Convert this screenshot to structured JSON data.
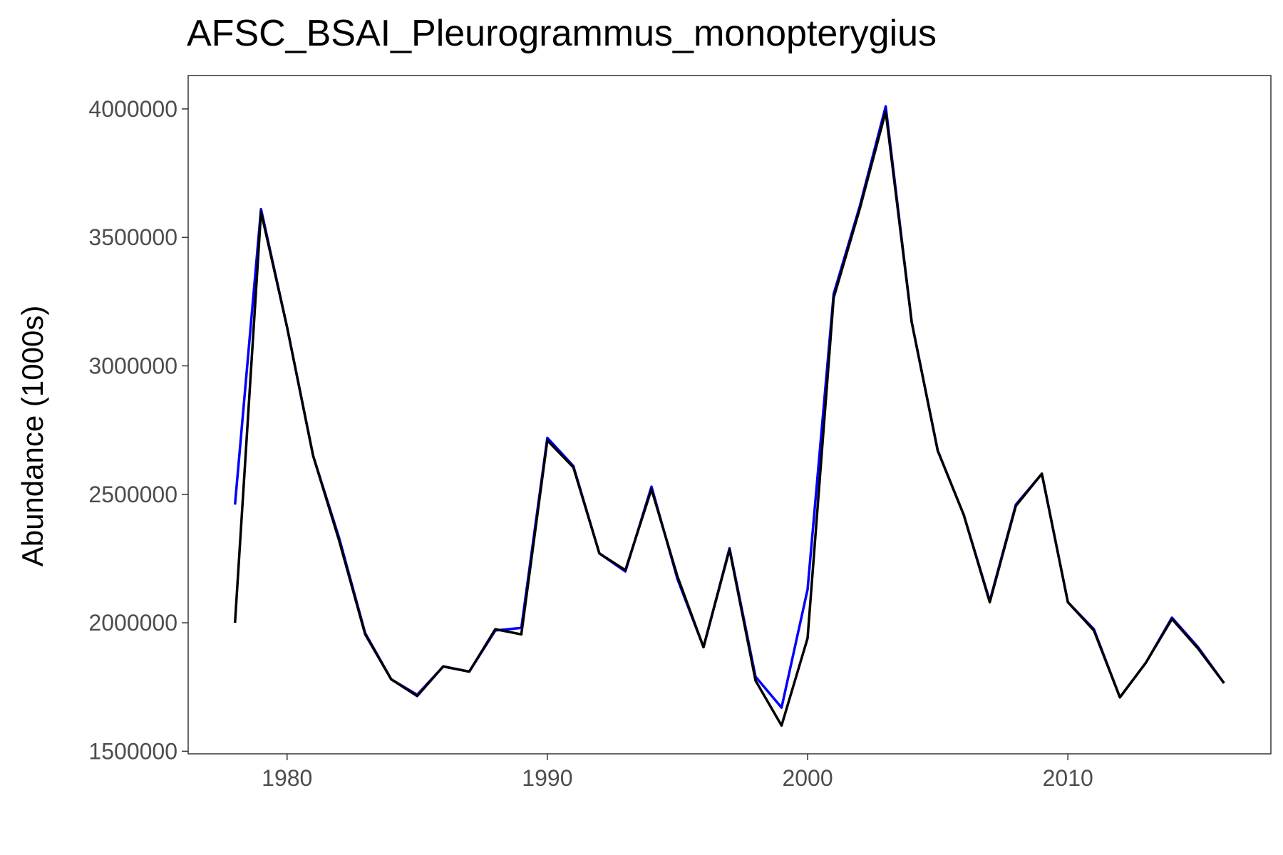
{
  "chart_data": {
    "type": "line",
    "title": "AFSC_BSAI_Pleurogrammus_monopterygius",
    "xlabel": "",
    "ylabel": "Abundance (1000s)",
    "xlim": [
      1976.2,
      2017.8
    ],
    "ylim": [
      1490000,
      4130000
    ],
    "x_ticks": [
      1980,
      1990,
      2000,
      2010
    ],
    "y_ticks": [
      1500000,
      2000000,
      2500000,
      3000000,
      3500000,
      4000000
    ],
    "grid": false,
    "x": [
      1978,
      1979,
      1980,
      1981,
      1982,
      1983,
      1984,
      1985,
      1986,
      1987,
      1988,
      1989,
      1990,
      1991,
      1992,
      1993,
      1994,
      1995,
      1996,
      1997,
      1998,
      1999,
      2000,
      2001,
      2002,
      2003,
      2004,
      2005,
      2006,
      2007,
      2008,
      2009,
      2010,
      2011,
      2012,
      2013,
      2014,
      2015,
      2016
    ],
    "series": [
      {
        "color": "#0000ff",
        "values": [
          2460000,
          3610000,
          3150000,
          2650000,
          2330000,
          1960000,
          1780000,
          1720000,
          1830000,
          1810000,
          1970000,
          1980000,
          2720000,
          2610000,
          2270000,
          2200000,
          2530000,
          2170000,
          1905000,
          2290000,
          1790000,
          1670000,
          2130000,
          3280000,
          3620000,
          4010000,
          3170000,
          2670000,
          2420000,
          2085000,
          2460000,
          2580000,
          2080000,
          1975000,
          1710000,
          1845000,
          2020000,
          1905000,
          1765000
        ]
      },
      {
        "color": "#000000",
        "values": [
          2000000,
          3600000,
          3150000,
          2650000,
          2320000,
          1955000,
          1780000,
          1715000,
          1830000,
          1810000,
          1975000,
          1955000,
          2710000,
          2605000,
          2270000,
          2205000,
          2520000,
          2180000,
          1905000,
          2285000,
          1775000,
          1600000,
          1940000,
          3265000,
          3610000,
          3990000,
          3170000,
          2670000,
          2420000,
          2080000,
          2455000,
          2580000,
          2080000,
          1970000,
          1710000,
          1845000,
          2015000,
          1900000,
          1765000
        ]
      }
    ]
  }
}
